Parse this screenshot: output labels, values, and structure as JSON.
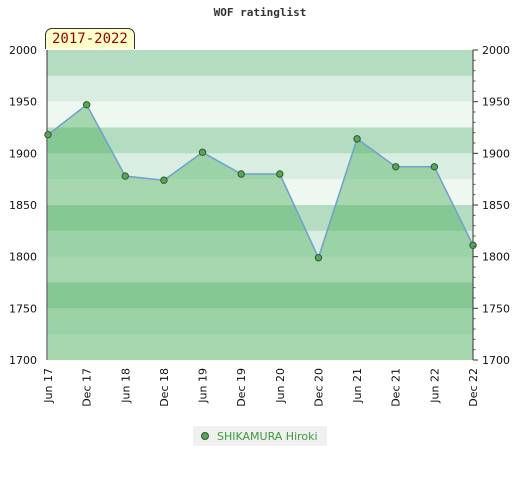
{
  "chart_data": {
    "type": "line",
    "title": "WOF ratinglist",
    "period_label": "2017-2022",
    "categories": [
      "Jun 17",
      "Dec 17",
      "Jun 18",
      "Dec 18",
      "Jun 19",
      "Dec 19",
      "Jun 20",
      "Dec 20",
      "Jun 21",
      "Dec 21",
      "Jun 22",
      "Dec 22"
    ],
    "series": [
      {
        "name": "SHIKAMURA Hiroki",
        "values": [
          1918,
          1947,
          1878,
          1874,
          1901,
          1880,
          1880,
          1799,
          1914,
          1887,
          1887,
          1811
        ]
      }
    ],
    "ylim": [
      1700,
      2000
    ],
    "y_ticks": [
      1700,
      1750,
      1800,
      1850,
      1900,
      1950,
      2000
    ],
    "grid": true,
    "legend_position": "bottom-center",
    "colors": {
      "line": "#6fa0d0",
      "fill": "#4fb060",
      "marker": "#5aa55a",
      "marker_stroke": "#2f5a2f",
      "band_dark": "#b3dcc0",
      "band_light": "#d9eee0",
      "band_lightest": "#eef7f0"
    }
  }
}
